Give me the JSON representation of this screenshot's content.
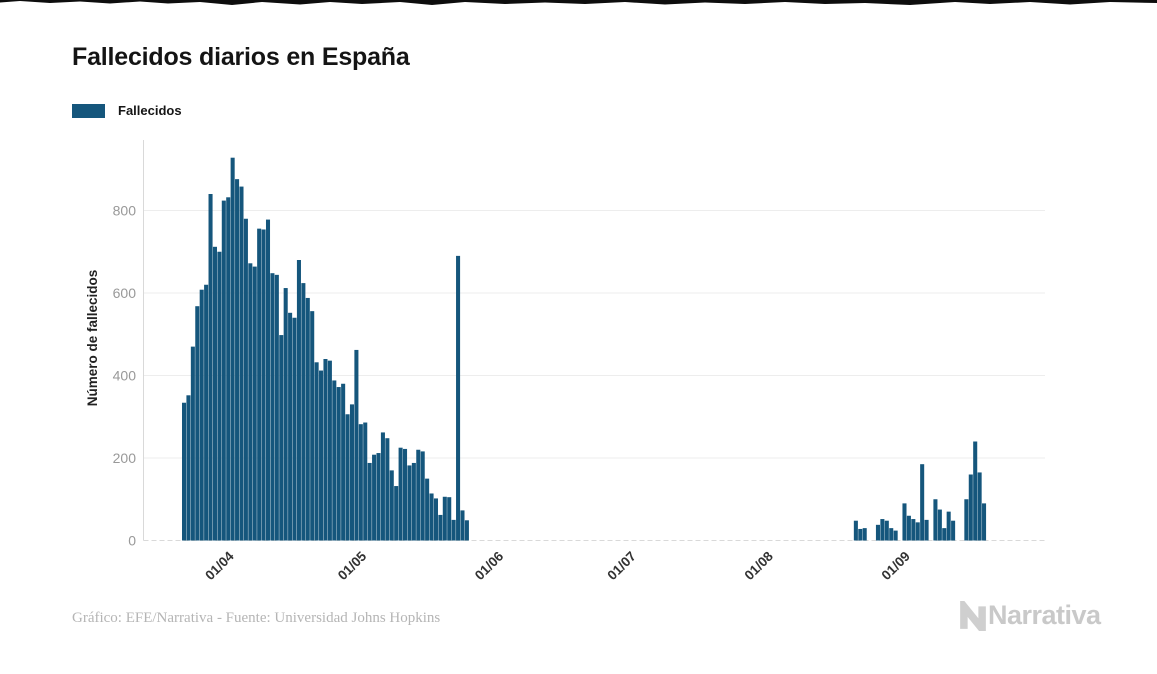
{
  "title": "Fallecidos diarios en España",
  "legend": {
    "label": "Fallecidos",
    "color": "#15567C"
  },
  "footer": {
    "credit": "Gráfico: EFE/Narrativa - Fuente: Universidad Johns Hopkins"
  },
  "brand": {
    "name": "Narrativa",
    "color": "#c9c9c9"
  },
  "chart_data": {
    "type": "bar",
    "title": "Fallecidos diarios en España",
    "series_name": "Fallecidos",
    "xlabel": "",
    "ylabel": "Número de fallecidos",
    "ylim": [
      0,
      960
    ],
    "yticks": [
      0,
      200,
      400,
      600,
      800
    ],
    "grid": "horizontal",
    "legend_position": "top-left",
    "bar_color": "#15567C",
    "axis_color": "#d9d9d9",
    "gridline_color": "#ededed",
    "ytick_label_color": "#999999",
    "xtick_label_color": "#333333",
    "x_tick_labels": [
      "01/04",
      "01/05",
      "01/06",
      "01/07",
      "01/08",
      "01/09"
    ],
    "x_tick_positions": [
      11,
      41,
      72,
      102,
      133,
      164
    ],
    "series": [
      {
        "name": "Fallecidos",
        "values": [
          334,
          352,
          470,
          568,
          608,
          620,
          840,
          712,
          700,
          824,
          832,
          928,
          876,
          858,
          780,
          672,
          664,
          756,
          754,
          778,
          648,
          644,
          498,
          612,
          552,
          540,
          680,
          624,
          588,
          556,
          432,
          412,
          440,
          436,
          388,
          372,
          380,
          306,
          330,
          462,
          282,
          286,
          188,
          208,
          212,
          262,
          248,
          170,
          132,
          225,
          222,
          182,
          188,
          220,
          216,
          150,
          114,
          102,
          62,
          106,
          105,
          50,
          690,
          73,
          49,
          0,
          0,
          0,
          0,
          0,
          0,
          0,
          0,
          0,
          0,
          0,
          0,
          0,
          0,
          0,
          0,
          0,
          0,
          0,
          0,
          0,
          0,
          0,
          0,
          0,
          0,
          0,
          0,
          0,
          0,
          0,
          0,
          0,
          0,
          0,
          0,
          0,
          0,
          0,
          0,
          0,
          0,
          0,
          0,
          0,
          0,
          0,
          0,
          0,
          0,
          0,
          0,
          0,
          0,
          0,
          0,
          0,
          0,
          0,
          0,
          0,
          0,
          0,
          0,
          0,
          0,
          0,
          0,
          0,
          0,
          0,
          0,
          0,
          0,
          0,
          0,
          0,
          0,
          0,
          0,
          0,
          0,
          0,
          0,
          0,
          0,
          0,
          48,
          28,
          30,
          0,
          0,
          38,
          52,
          48,
          30,
          24,
          0,
          90,
          60,
          52,
          44,
          185,
          50,
          0,
          100,
          75,
          30,
          70,
          48,
          0,
          0,
          100,
          160,
          240,
          165,
          90
        ]
      }
    ]
  }
}
